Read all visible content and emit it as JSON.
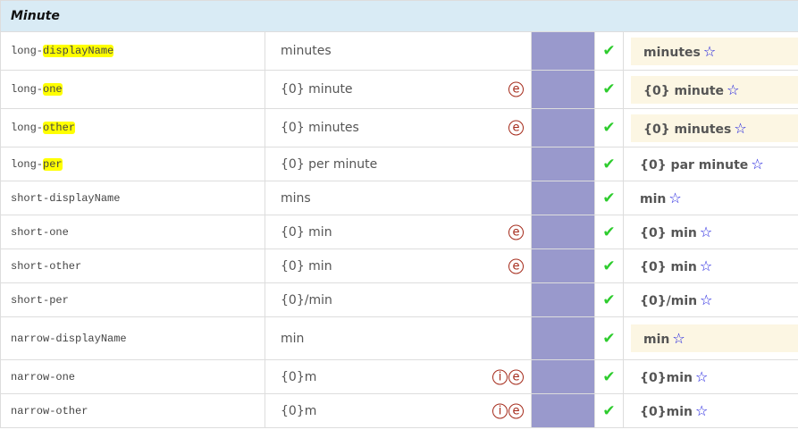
{
  "section": "Minute",
  "rows": [
    {
      "code_prefix": "long-",
      "code_hl": "displayName",
      "value": "minutes",
      "icons": [],
      "result": "minutes",
      "boxed": true,
      "h": 43
    },
    {
      "code_prefix": "long-",
      "code_hl": "one",
      "value": "{0} minute",
      "icons": [
        "e"
      ],
      "result": "{0} minute",
      "boxed": true,
      "h": 43
    },
    {
      "code_prefix": "long-",
      "code_hl": "other",
      "value": "{0} minutes",
      "icons": [
        "e"
      ],
      "result": "{0} minutes",
      "boxed": true,
      "h": 43
    },
    {
      "code_prefix": "long-",
      "code_hl": "per",
      "value": "{0} per minute",
      "icons": [],
      "result": "{0} par minute",
      "boxed": false,
      "h": 38
    },
    {
      "code_prefix": "short-displayName",
      "code_hl": "",
      "value": "mins",
      "icons": [],
      "result": "min",
      "boxed": false,
      "h": 38
    },
    {
      "code_prefix": "short-one",
      "code_hl": "",
      "value": "{0} min",
      "icons": [
        "e"
      ],
      "result": "{0} min",
      "boxed": false,
      "h": 38
    },
    {
      "code_prefix": "short-other",
      "code_hl": "",
      "value": "{0} min",
      "icons": [
        "e"
      ],
      "result": "{0} min",
      "boxed": false,
      "h": 38
    },
    {
      "code_prefix": "short-per",
      "code_hl": "",
      "value": "{0}/min",
      "icons": [],
      "result": "{0}/min",
      "boxed": false,
      "h": 38
    },
    {
      "code_prefix": "narrow-displayName",
      "code_hl": "",
      "value": "min",
      "icons": [],
      "result": "min",
      "boxed": true,
      "h": 48
    },
    {
      "code_prefix": "narrow-one",
      "code_hl": "",
      "value": "{0}m",
      "icons": [
        "i",
        "e"
      ],
      "result": "{0}min",
      "boxed": false,
      "h": 38
    },
    {
      "code_prefix": "narrow-other",
      "code_hl": "",
      "value": "{0}m",
      "icons": [
        "i",
        "e"
      ],
      "result": "{0}min",
      "boxed": false,
      "h": 38
    }
  ],
  "check_icon": "✔",
  "star_icon": "☆"
}
